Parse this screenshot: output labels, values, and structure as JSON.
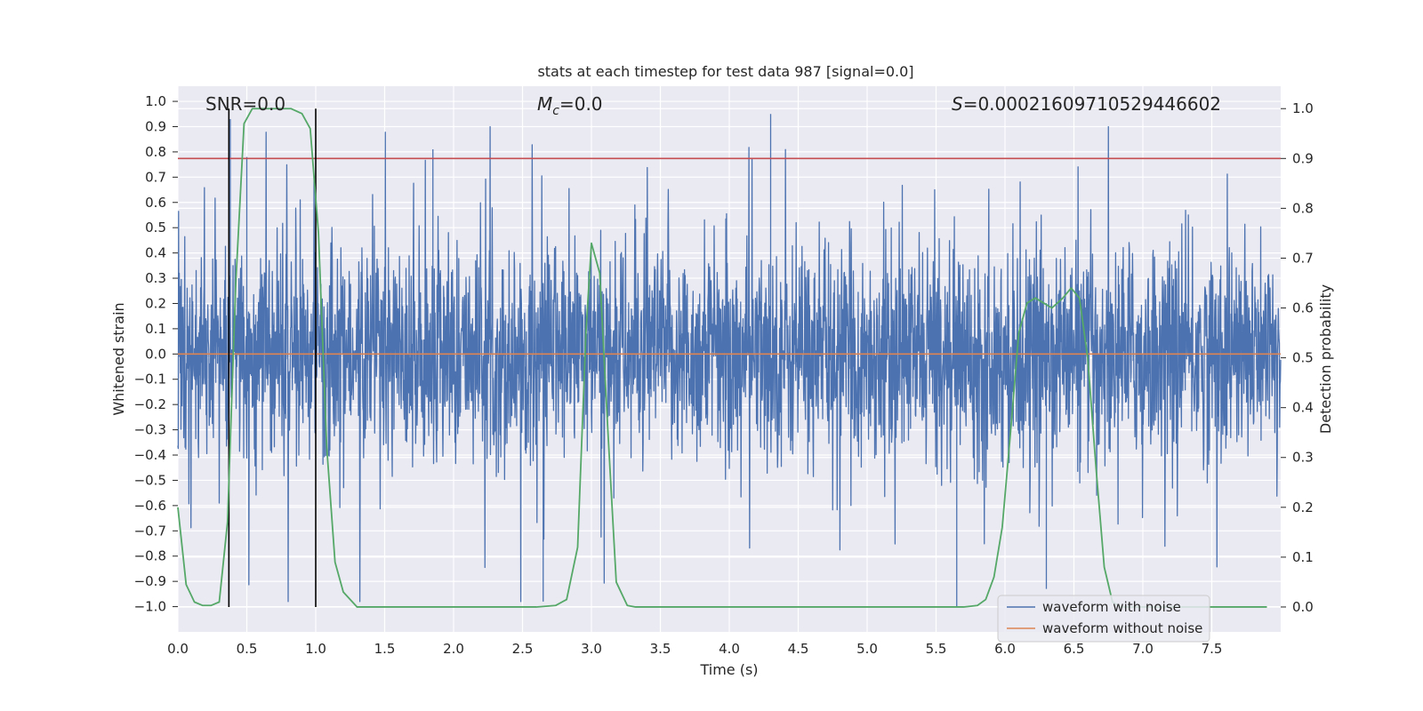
{
  "chart_data": {
    "type": "line",
    "title": "stats at each timestep for test data 987 [signal=0.0]",
    "xlabel": "Time (s)",
    "ylabel_left": "Whitened strain",
    "ylabel_right": "Detection probability",
    "xlim": [
      0,
      8
    ],
    "ylim_left": [
      -1.1,
      1.06
    ],
    "ylim_right": [
      -0.05,
      1.045
    ],
    "x_ticks": [
      "0.0",
      "0.5",
      "1.0",
      "1.5",
      "2.0",
      "2.5",
      "3.0",
      "3.5",
      "4.0",
      "4.5",
      "5.0",
      "5.5",
      "6.0",
      "6.5",
      "7.0",
      "7.5"
    ],
    "y_left_ticks": [
      "1.0",
      "0.9",
      "0.8",
      "0.7",
      "0.6",
      "0.5",
      "0.4",
      "0.3",
      "0.2",
      "0.1",
      "0.0",
      "−0.1",
      "−0.2",
      "−0.3",
      "−0.4",
      "−0.5",
      "−0.6",
      "−0.7",
      "−0.8",
      "−0.9",
      "−1.0"
    ],
    "y_right_ticks": [
      "1.0",
      "0.9",
      "0.8",
      "0.7",
      "0.6",
      "0.5",
      "0.4",
      "0.3",
      "0.2",
      "0.1",
      "0.0"
    ],
    "annotations": {
      "snr": "SNR=0.0",
      "mc_symbol": "M",
      "mc_sub": "c",
      "mc_value": "=0.0",
      "s_symbol": "S",
      "s_value": "=0.00021609710529446602"
    },
    "threshold_right": 0.9,
    "vlines_x": [
      0.37,
      1.0
    ],
    "series": [
      {
        "name": "waveform with noise",
        "color": "#4c72b0",
        "description": "whitened noise, amplitude mostly within ±0.6, peaks near ±1.0",
        "notable_peaks": [
          {
            "x": 0.38,
            "y": 0.93
          },
          {
            "x": 0.5,
            "y": 0.78
          },
          {
            "x": 1.85,
            "y": 0.81
          },
          {
            "x": 4.3,
            "y": 0.95
          },
          {
            "x": 2.65,
            "y": -0.98
          },
          {
            "x": 5.65,
            "y": -1.0
          },
          {
            "x": 6.3,
            "y": -0.93
          }
        ]
      },
      {
        "name": "waveform without noise",
        "color": "#dd8452",
        "y_constant": 0.0
      },
      {
        "color": "#55a868",
        "axis": "right",
        "x": [
          0.0,
          0.06,
          0.12,
          0.18,
          0.24,
          0.3,
          0.36,
          0.42,
          0.48,
          0.54,
          0.62,
          0.72,
          0.82,
          0.9,
          0.96,
          1.02,
          1.08,
          1.14,
          1.2,
          1.3,
          2.6,
          2.74,
          2.82,
          2.9,
          2.96,
          3.0,
          3.06,
          3.12,
          3.18,
          3.26,
          3.32,
          3.5,
          5.7,
          5.8,
          5.86,
          5.92,
          5.98,
          6.04,
          6.1,
          6.16,
          6.22,
          6.28,
          6.34,
          6.42,
          6.48,
          6.54,
          6.6,
          6.66,
          6.72,
          6.78,
          6.84,
          7.9
        ],
        "y": [
          0.2,
          0.045,
          0.01,
          0.003,
          0.003,
          0.01,
          0.17,
          0.65,
          0.97,
          1.0,
          1.0,
          1.0,
          1.0,
          0.99,
          0.96,
          0.75,
          0.32,
          0.09,
          0.03,
          0.0,
          0.0,
          0.003,
          0.015,
          0.12,
          0.55,
          0.73,
          0.67,
          0.35,
          0.05,
          0.003,
          0.0,
          0.0,
          0.0,
          0.003,
          0.015,
          0.06,
          0.16,
          0.35,
          0.55,
          0.61,
          0.62,
          0.61,
          0.6,
          0.62,
          0.64,
          0.62,
          0.5,
          0.28,
          0.08,
          0.01,
          0.0,
          0.0
        ]
      }
    ],
    "legend": {
      "placement": "bottom-right",
      "entries": [
        "waveform with noise",
        "waveform without noise"
      ]
    },
    "colors": {
      "background": "#eaeaf2",
      "grid": "#ffffff",
      "threshold": "#c44e52",
      "vline": "#000000"
    }
  }
}
